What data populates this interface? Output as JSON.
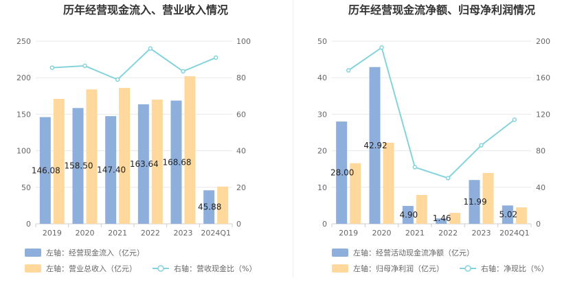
{
  "chart_data": [
    {
      "type": "bar",
      "title": "历年经营现金流入、营业收入情况",
      "categories": [
        "2019",
        "2020",
        "2021",
        "2022",
        "2023",
        "2024Q1"
      ],
      "left_axis": {
        "ticks": [
          "0",
          "50",
          "100",
          "150",
          "200",
          "250"
        ],
        "ylim": [
          0,
          250
        ]
      },
      "right_axis": {
        "ticks": [
          "0",
          "20",
          "40",
          "60",
          "80",
          "100"
        ],
        "ylim": [
          0,
          100
        ]
      },
      "series": [
        {
          "name": "左轴：经营现金流入（亿元）",
          "type": "bar",
          "axis": "left",
          "color": "#8eaedb",
          "values": [
            146.08,
            158.5,
            147.4,
            163.64,
            168.68,
            45.88
          ],
          "labels": [
            "146.08",
            "158.50",
            "147.40",
            "163.64",
            "168.68",
            "45.88"
          ]
        },
        {
          "name": "左轴：营业总收入（亿元）",
          "type": "bar",
          "axis": "left",
          "color": "#ffd89b",
          "values": [
            171,
            184,
            186,
            170,
            202,
            51
          ]
        },
        {
          "name": "右轴：营收现金比（%）",
          "type": "line",
          "axis": "right",
          "color": "#84d3dc",
          "values": [
            85.5,
            86.5,
            79,
            96,
            83.5,
            91
          ]
        }
      ]
    },
    {
      "type": "bar",
      "title": "历年经营现金流净额、归母净利润情况",
      "categories": [
        "2019",
        "2020",
        "2021",
        "2022",
        "2023",
        "2024Q1"
      ],
      "left_axis": {
        "ticks": [
          "0",
          "10",
          "20",
          "30",
          "40",
          "50"
        ],
        "ylim": [
          0,
          50
        ]
      },
      "right_axis": {
        "ticks": [
          "0",
          "40",
          "80",
          "120",
          "160",
          "200"
        ],
        "ylim": [
          0,
          200
        ]
      },
      "series": [
        {
          "name": "左轴：经营活动现金流净额（亿元）",
          "type": "bar",
          "axis": "left",
          "color": "#8eaedb",
          "values": [
            28.0,
            42.92,
            4.9,
            1.46,
            11.99,
            5.02
          ],
          "labels": [
            "28.00",
            "42.92",
            "4.90",
            "1.46",
            "11.99",
            "5.02"
          ]
        },
        {
          "name": "左轴：归母净利润（亿元）",
          "type": "bar",
          "axis": "left",
          "color": "#ffd89b",
          "values": [
            16.6,
            22.2,
            7.9,
            3.0,
            13.9,
            4.5
          ]
        },
        {
          "name": "右轴：净现比（%）",
          "type": "line",
          "axis": "right",
          "color": "#84d3dc",
          "values": [
            168,
            193,
            62,
            50,
            86,
            114
          ]
        }
      ]
    }
  ]
}
